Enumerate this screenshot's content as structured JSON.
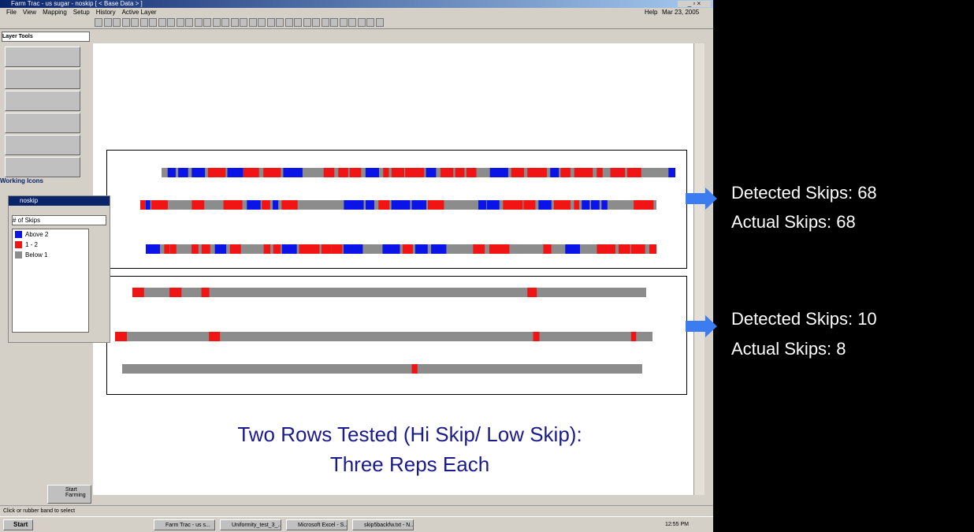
{
  "window": {
    "title": "Farm Trac - us sugar - noskip [ < Base Data > ]",
    "menu": [
      "File",
      "View",
      "Mapping",
      "Setup",
      "History",
      "Active Layer"
    ],
    "help": "Help",
    "date": "Mar 23, 2005"
  },
  "left_panel": {
    "layer_tools": "Layer Tools",
    "working_icons": "Working Icons",
    "start_farming": "Start Farming"
  },
  "legend_window": {
    "title": "noskip",
    "field": "# of Skips",
    "items": [
      {
        "label": "Above 2",
        "color": "#0a14e6"
      },
      {
        "label": "1 - 2",
        "color": "#f01414"
      },
      {
        "label": "Below 1",
        "color": "#8c8c8c"
      }
    ]
  },
  "results": [
    {
      "detected": "Detected Skips: 68",
      "actual": "Actual Skips: 68"
    },
    {
      "detected": "Detected Skips: 10",
      "actual": "Actual Skips: 8"
    }
  ],
  "caption": [
    "Two Rows Tested (Hi Skip/ Low Skip):",
    "Three Reps Each"
  ],
  "status": "Click or rubber band to select",
  "taskbar": {
    "start": "Start",
    "tasks": [
      "Farm Trac - us s...",
      "Uniformity_test_3_...",
      "Microsoft Excel - S...",
      "skip5backfw.txt - N..."
    ],
    "clock": "12:55 PM"
  }
}
